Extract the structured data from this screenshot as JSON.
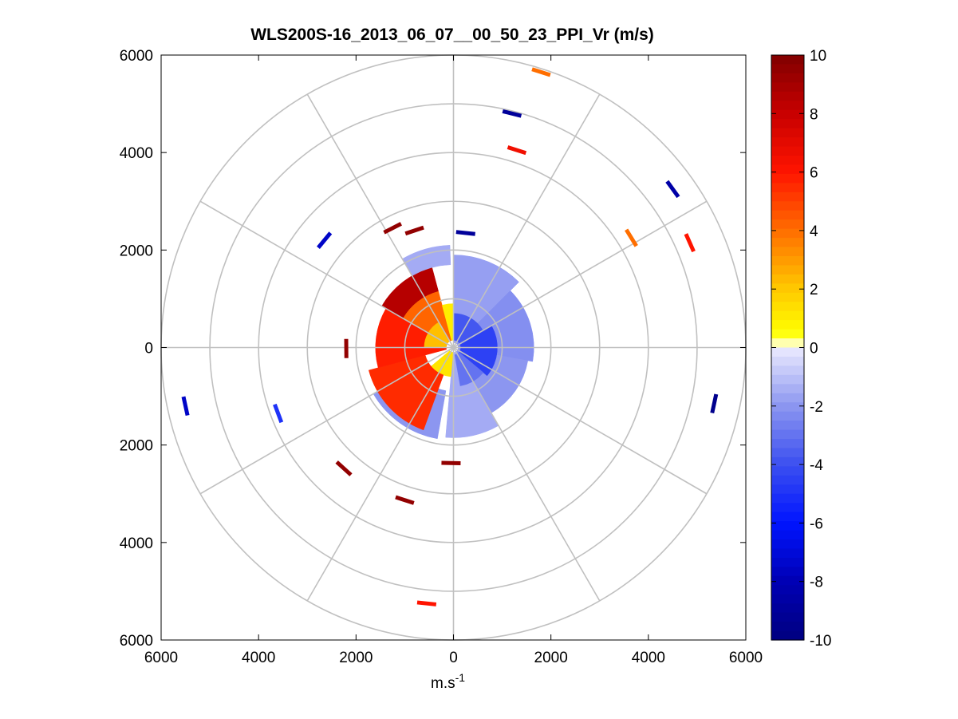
{
  "chart_data": {
    "type": "heatmap",
    "subtype": "polar-ppi",
    "title": "WLS200S-16_2013_06_07__00_50_23_PPI_Vr (m/s)",
    "xlabel_main": "m.s",
    "xlabel_sup": "-1",
    "ylabel": "",
    "xlim": [
      -6000,
      6000
    ],
    "ylim": [
      -6000,
      6000
    ],
    "x_ticks": [
      {
        "value": -6000,
        "label": "6000"
      },
      {
        "value": -4000,
        "label": "4000"
      },
      {
        "value": -2000,
        "label": "2000"
      },
      {
        "value": 0,
        "label": "0"
      },
      {
        "value": 2000,
        "label": "2000"
      },
      {
        "value": 4000,
        "label": "4000"
      },
      {
        "value": 6000,
        "label": "6000"
      }
    ],
    "y_ticks": [
      {
        "value": 6000,
        "label": "6000"
      },
      {
        "value": 4000,
        "label": "4000"
      },
      {
        "value": 2000,
        "label": "2000"
      },
      {
        "value": 0,
        "label": "0"
      },
      {
        "value": -2000,
        "label": "2000"
      },
      {
        "value": -4000,
        "label": "4000"
      },
      {
        "value": -6000,
        "label": "6000"
      }
    ],
    "polar_grid_rings": [
      1000,
      2000,
      3000,
      4000,
      5000,
      6000
    ],
    "polar_grid_spokes_deg": [
      0,
      30,
      60,
      90,
      120,
      150,
      180,
      210,
      240,
      270,
      300,
      330
    ],
    "colorbar": {
      "min": -10,
      "max": 10,
      "ticks": [
        {
          "value": 10,
          "label": "10"
        },
        {
          "value": 8,
          "label": "8"
        },
        {
          "value": 6,
          "label": "6"
        },
        {
          "value": 4,
          "label": "4"
        },
        {
          "value": 2,
          "label": "2"
        },
        {
          "value": 0,
          "label": "0"
        },
        {
          "value": -2,
          "label": "-2"
        },
        {
          "value": -4,
          "label": "-4"
        },
        {
          "value": -6,
          "label": "-6"
        },
        {
          "value": -8,
          "label": "-8"
        },
        {
          "value": -10,
          "label": "-10"
        }
      ]
    },
    "velocity_field": {
      "description_units": "m/s",
      "sectors": [
        {
          "az_from": 0,
          "az_to": 45,
          "r_from": 100,
          "r_to": 1900,
          "vr": -1.8
        },
        {
          "az_from": 45,
          "az_to": 100,
          "r_from": 100,
          "r_to": 1650,
          "vr": -2.2
        },
        {
          "az_from": 100,
          "az_to": 150,
          "r_from": 100,
          "r_to": 1550,
          "vr": -2.0
        },
        {
          "az_from": 150,
          "az_to": 185,
          "r_from": 100,
          "r_to": 1850,
          "vr": -1.5
        },
        {
          "az_from": 60,
          "az_to": 130,
          "r_from": 150,
          "r_to": 900,
          "vr": -4.5
        },
        {
          "az_from": 0,
          "az_to": 60,
          "r_from": 150,
          "r_to": 700,
          "vr": -3.8
        },
        {
          "az_from": 130,
          "az_to": 170,
          "r_from": 150,
          "r_to": 800,
          "vr": -3.0
        },
        {
          "az_from": 190,
          "az_to": 240,
          "r_from": 900,
          "r_to": 1900,
          "vr": -2.0
        },
        {
          "az_from": 185,
          "az_to": 230,
          "r_from": 100,
          "r_to": 600,
          "vr": 1.2
        },
        {
          "az_from": 200,
          "az_to": 255,
          "r_from": 600,
          "r_to": 1800,
          "vr": 5.5
        },
        {
          "az_from": 255,
          "az_to": 300,
          "r_from": 150,
          "r_to": 1600,
          "vr": 5.8
        },
        {
          "az_from": 300,
          "az_to": 345,
          "r_from": 150,
          "r_to": 1200,
          "vr": 4.2
        },
        {
          "az_from": 345,
          "az_to": 360,
          "r_from": 150,
          "r_to": 900,
          "vr": 1.0
        },
        {
          "az_from": 270,
          "az_to": 330,
          "r_from": 150,
          "r_to": 600,
          "vr": 2.2
        },
        {
          "az_from": 300,
          "az_to": 345,
          "r_from": 1200,
          "r_to": 1700,
          "vr": 8.5
        },
        {
          "az_from": 330,
          "az_to": 358,
          "r_from": 1700,
          "r_to": 2100,
          "vr": -1.5
        }
      ],
      "isolated_returns": [
        {
          "x": 1800,
          "y": 5650,
          "vr": 4.0
        },
        {
          "x": 1200,
          "y": 4800,
          "vr": -9.0
        },
        {
          "x": 1300,
          "y": 4050,
          "vr": 6.5
        },
        {
          "x": 4500,
          "y": 3250,
          "vr": -8.5
        },
        {
          "x": 4850,
          "y": 2150,
          "vr": 6.0
        },
        {
          "x": 3650,
          "y": 2250,
          "vr": 4.0
        },
        {
          "x": 250,
          "y": 2350,
          "vr": -9.0
        },
        {
          "x": -2650,
          "y": 2200,
          "vr": -7.5
        },
        {
          "x": -1250,
          "y": 2450,
          "vr": 9.5
        },
        {
          "x": -800,
          "y": 2400,
          "vr": 9.5
        },
        {
          "x": -2200,
          "y": -20,
          "vr": 9.5
        },
        {
          "x": -5500,
          "y": -1200,
          "vr": -7.5
        },
        {
          "x": -3600,
          "y": -1350,
          "vr": -5.0
        },
        {
          "x": -2250,
          "y": -2480,
          "vr": 9.5
        },
        {
          "x": -1000,
          "y": -3130,
          "vr": 9.5
        },
        {
          "x": -50,
          "y": -2370,
          "vr": 9.5
        },
        {
          "x": 5350,
          "y": -1150,
          "vr": -9.5
        },
        {
          "x": -550,
          "y": -5250,
          "vr": 6.0
        }
      ]
    }
  }
}
